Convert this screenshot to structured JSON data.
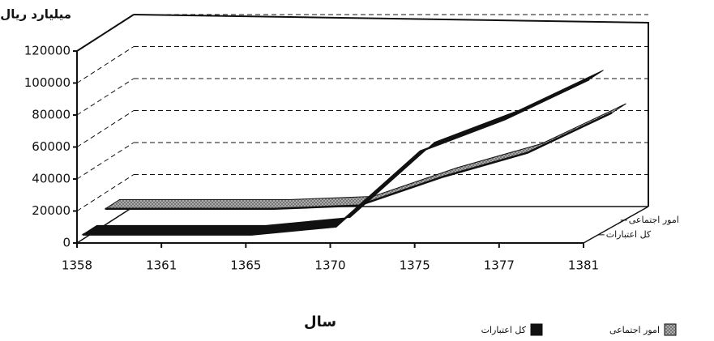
{
  "chart_data": {
    "type": "line3d",
    "y_label": "میلیارد ریال",
    "x_label": "سال",
    "categories": [
      "1358",
      "1361",
      "1365",
      "1370",
      "1375",
      "1377",
      "1381"
    ],
    "series": [
      {
        "name": "کل اعتبارات",
        "color": "#111111",
        "values": [
          3000,
          3000,
          3000,
          8000,
          55000,
          75000,
          100000
        ]
      },
      {
        "name": "امور اجتماعی",
        "color": "#9a9a9a",
        "values": [
          10000,
          10000,
          10000,
          12000,
          30000,
          45000,
          70000
        ]
      }
    ],
    "ylim": [
      0,
      120000
    ],
    "yticks": [
      0,
      20000,
      40000,
      60000,
      80000,
      100000,
      120000
    ],
    "grid": true
  }
}
